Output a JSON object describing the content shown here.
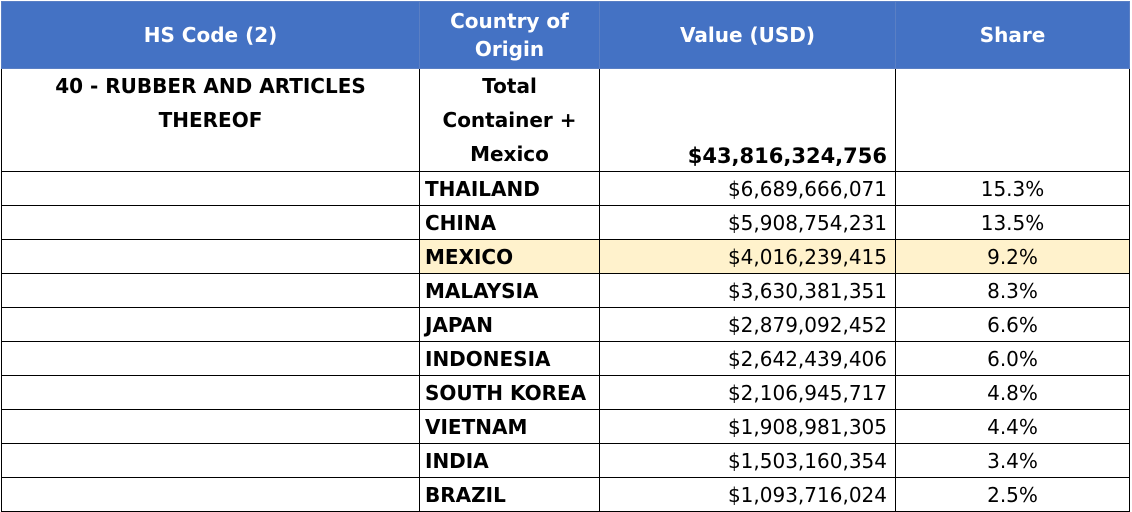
{
  "headers": {
    "hs_code": "HS Code (2)",
    "country": "Country of Origin",
    "value": "Value (USD)",
    "share": "Share"
  },
  "total_row": {
    "hs_code": "40 - RUBBER AND ARTICLES THEREOF",
    "country": "Total Container + Mexico",
    "value": "$43,816,324,756",
    "share": ""
  },
  "rows": [
    {
      "country": "THAILAND",
      "value": "$6,689,666,071",
      "share": "15.3%"
    },
    {
      "country": "CHINA",
      "value": "$5,908,754,231",
      "share": "13.5%"
    },
    {
      "country": "MEXICO",
      "value": "$4,016,239,415",
      "share": "9.2%"
    },
    {
      "country": "MALAYSIA",
      "value": "$3,630,381,351",
      "share": "8.3%"
    },
    {
      "country": "JAPAN",
      "value": "$2,879,092,452",
      "share": "6.6%"
    },
    {
      "country": "INDONESIA",
      "value": "$2,642,439,406",
      "share": "6.0%"
    },
    {
      "country": "SOUTH KOREA",
      "value": "$2,106,945,717",
      "share": "4.8%"
    },
    {
      "country": "VIETNAM",
      "value": "$1,908,981,305",
      "share": "4.4%"
    },
    {
      "country": "INDIA",
      "value": "$1,503,160,354",
      "share": "3.4%"
    },
    {
      "country": "BRAZIL",
      "value": "$1,093,716,024",
      "share": "2.5%"
    }
  ],
  "colors": {
    "header_bg": "#4472C4",
    "header_text": "#FFFFFF",
    "highlight_bg": "#FFF2CC"
  },
  "highlighted_country": "MEXICO"
}
